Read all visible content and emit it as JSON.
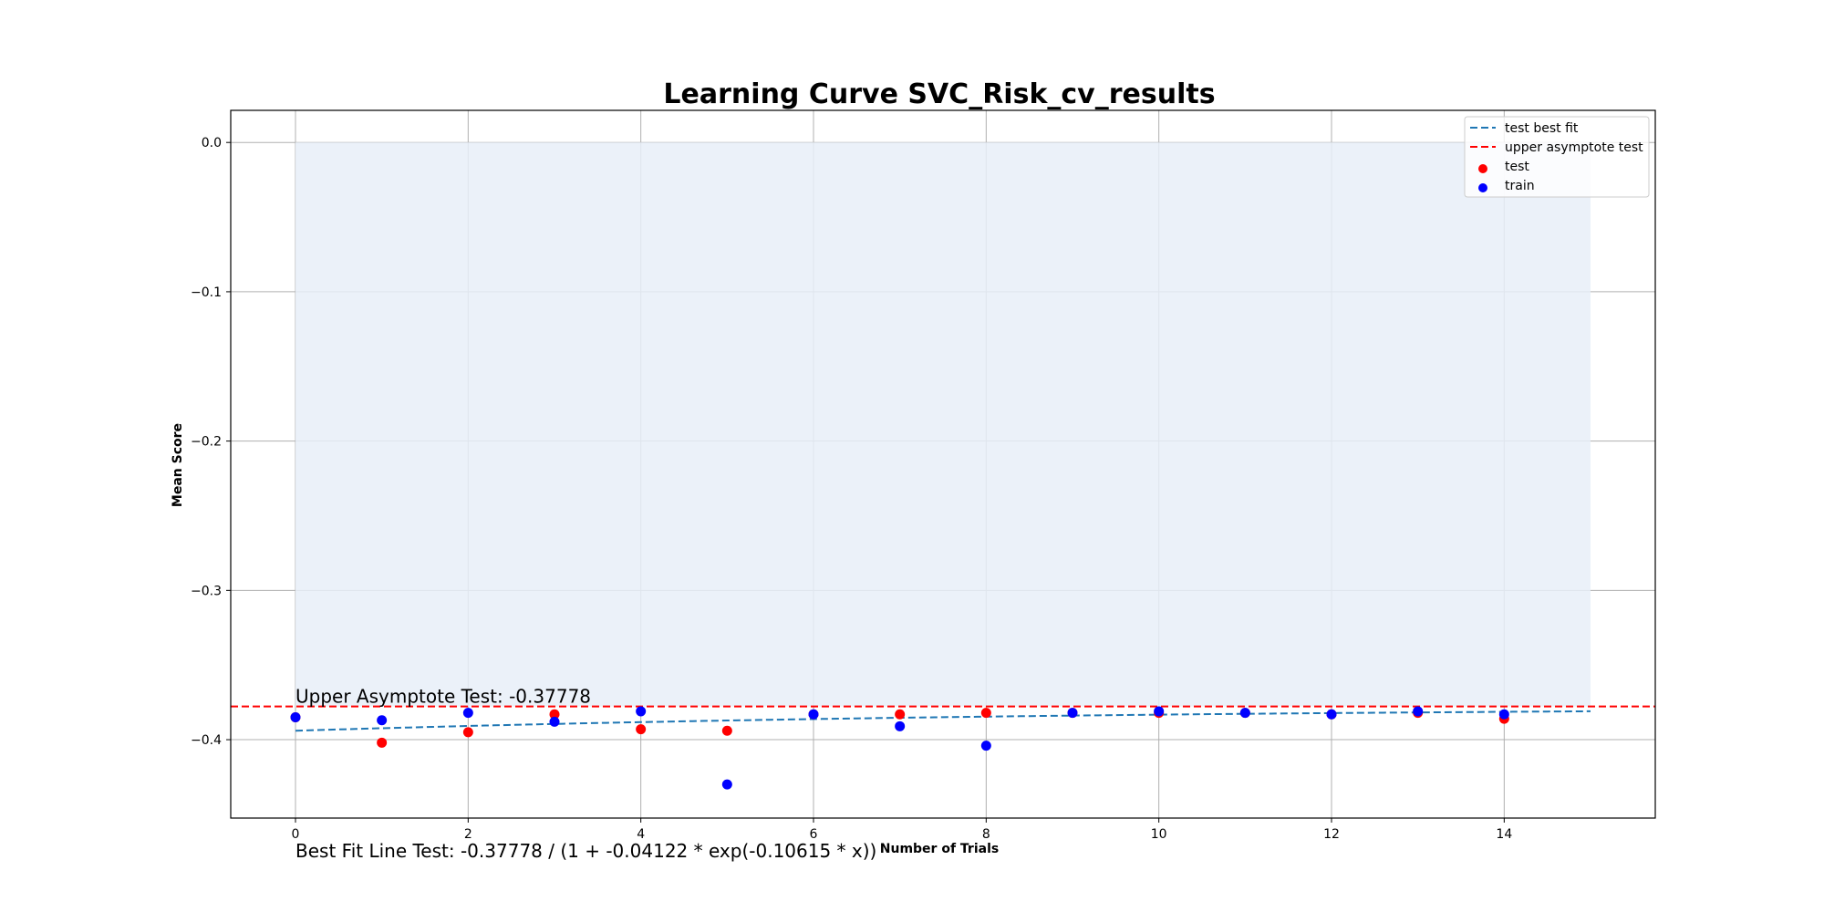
{
  "chart_data": {
    "type": "scatter",
    "title": "Learning Curve SVC_Risk_cv_results",
    "xlabel": "Number of Trials",
    "ylabel": "Mean Score",
    "xlim": [
      -0.75,
      15.75
    ],
    "ylim": [
      -0.4525,
      0.0215
    ],
    "xticks": [
      0,
      2,
      4,
      6,
      8,
      10,
      12,
      14
    ],
    "yticks": [
      0.0,
      -0.1,
      -0.2,
      -0.3,
      -0.4
    ],
    "xtick_labels": [
      "0",
      "2",
      "4",
      "6",
      "8",
      "10",
      "12",
      "14"
    ],
    "ytick_labels": [
      "0.0",
      "−0.1",
      "−0.2",
      "−0.3",
      "−0.4"
    ],
    "grid": true,
    "legend_position": "top-right",
    "shaded_region": {
      "x": [
        0,
        15
      ],
      "y": [
        -0.37778,
        0.0
      ],
      "color": "#e8eff8"
    },
    "upper_asymptote": {
      "name": "upper asymptote test",
      "y": -0.37778,
      "color": "#ff0000"
    },
    "fit": {
      "name": "test best fit",
      "color": "#1f77b4",
      "a": -0.37778,
      "b": -0.04122,
      "c": -0.10615,
      "x_range": [
        0,
        15
      ]
    },
    "series": [
      {
        "name": "test",
        "color": "#ff0000",
        "x": [
          0,
          1,
          2,
          3,
          4,
          5,
          6,
          7,
          8,
          9,
          10,
          11,
          12,
          13,
          14
        ],
        "y": [
          -0.385,
          -0.402,
          -0.395,
          -0.383,
          -0.393,
          -0.394,
          -0.383,
          -0.383,
          -0.382,
          -0.382,
          -0.382,
          -0.382,
          -0.383,
          -0.382,
          -0.386
        ]
      },
      {
        "name": "train",
        "color": "#0000ff",
        "x": [
          0,
          1,
          2,
          3,
          4,
          5,
          6,
          7,
          8,
          9,
          10,
          11,
          12,
          13,
          14
        ],
        "y": [
          -0.385,
          -0.387,
          -0.382,
          -0.388,
          -0.381,
          -0.43,
          -0.383,
          -0.391,
          -0.404,
          -0.382,
          -0.381,
          -0.382,
          -0.383,
          -0.381,
          -0.383
        ]
      }
    ],
    "annotations": {
      "asymptote_text": "Upper Asymptote Test: -0.37778",
      "fit_text": "Best Fit Line Test: -0.37778 / (1 + -0.04122 * exp(-0.10615 * x))"
    }
  }
}
